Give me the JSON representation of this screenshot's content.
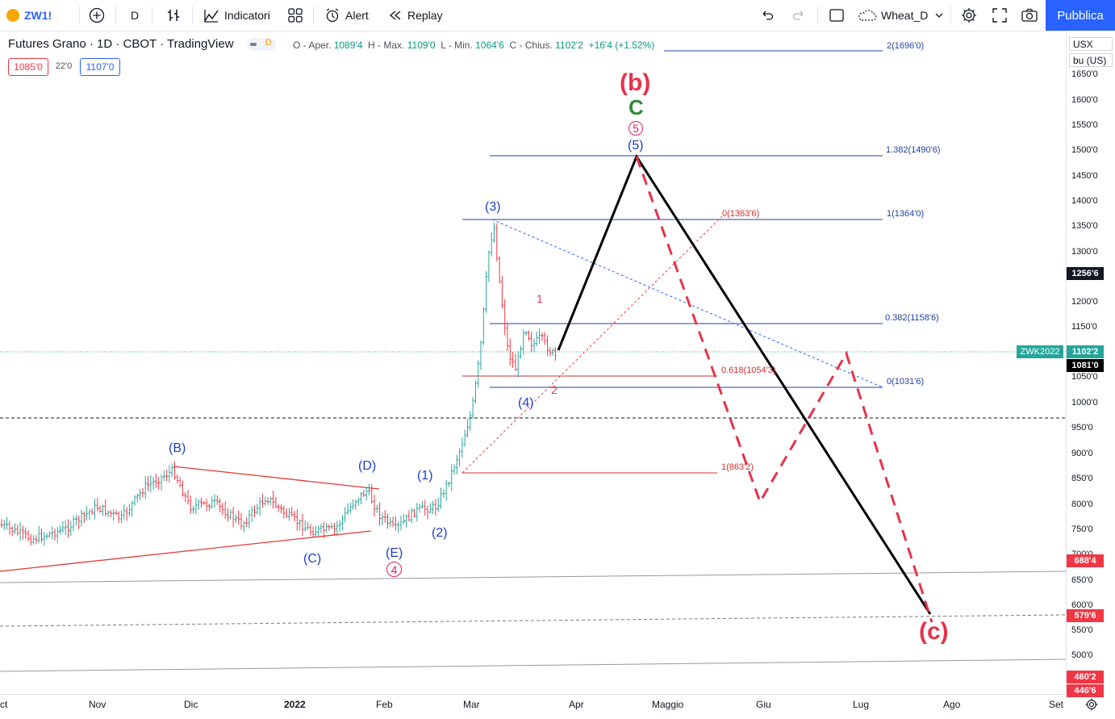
{
  "toolbar": {
    "symbol": "ZW1!",
    "interval": "D",
    "indicators": "Indicatori",
    "alert": "Alert",
    "replay": "Replay",
    "layout_name": "Wheat_D",
    "publish": "Pubblica",
    "icons": [
      "plus-circle-icon",
      "bar-chart-icon",
      "indicators-icon",
      "templates-icon",
      "alarm-clock-icon",
      "rewind-icon",
      "undo-icon",
      "redo-icon",
      "square-icon",
      "cloud-icon",
      "gear-icon",
      "fullscreen-icon",
      "camera-icon"
    ]
  },
  "legend": {
    "title": "Futures Grano · 1D · CBOT · TradingView",
    "badge": "D",
    "open_label": "O - Aper.",
    "open": "1089'4",
    "high_label": "H - Max.",
    "high": "1109'0",
    "low_label": "L - Min.",
    "low": "1064'6",
    "close_label": "C - Chius.",
    "close": "1102'2",
    "change": "+16'4 (+1.52%)",
    "bid": "1085'0",
    "spread": "22'0",
    "ask": "1107'0"
  },
  "price_axis": {
    "currency": "USX",
    "unit": "bu (US)",
    "ticks": [
      "1650'0",
      "1600'0",
      "1550'0",
      "1500'0",
      "1450'0",
      "1400'0",
      "1350'0",
      "1300'0",
      "1200'0",
      "1150'0",
      "1050'0",
      "1000'0",
      "950'0",
      "900'0",
      "850'0",
      "800'0",
      "750'0",
      "700'0",
      "650'0",
      "600'0",
      "550'0",
      "500'0"
    ],
    "labels": {
      "l1256": "1256'6",
      "zwk_name": "ZWK2022",
      "zwk_price": "1102'2",
      "l1081": "1081'0",
      "l688": "688'4",
      "l579": "579'6",
      "l460": "460'2",
      "l446": "446'6"
    },
    "colors": {
      "green": "#26a69a",
      "red": "#f23645",
      "black": "#131722"
    }
  },
  "time_axis": [
    "ct",
    "Nov",
    "Dic",
    "2022",
    "Feb",
    "Mar",
    "Apr",
    "Maggio",
    "Giu",
    "Lug",
    "Ago",
    "Set"
  ],
  "fib_labels": {
    "f2": "2(1696'0)",
    "f1382": "1.382(1490'6)",
    "f1": "1(1364'0)",
    "f0382": "0.382(1158'6)",
    "f0": "0(1031'6)",
    "r0": "0(1363'6)",
    "r0618": "0.618(1054'3)",
    "r1": "1(863'2)"
  },
  "wave_labels": {
    "b_big": "(b)",
    "c_green": "C",
    "five_circle": "5",
    "five_paren": "(5)",
    "three": "(3)",
    "four": "(4)",
    "one_red": "1",
    "two_red": "2",
    "one_paren": "(1)",
    "two_paren": "(2)",
    "B": "(B)",
    "C": "(C)",
    "D": "(D)",
    "E": "(E)",
    "four_circle": "4",
    "c_big": "(c)"
  }
}
